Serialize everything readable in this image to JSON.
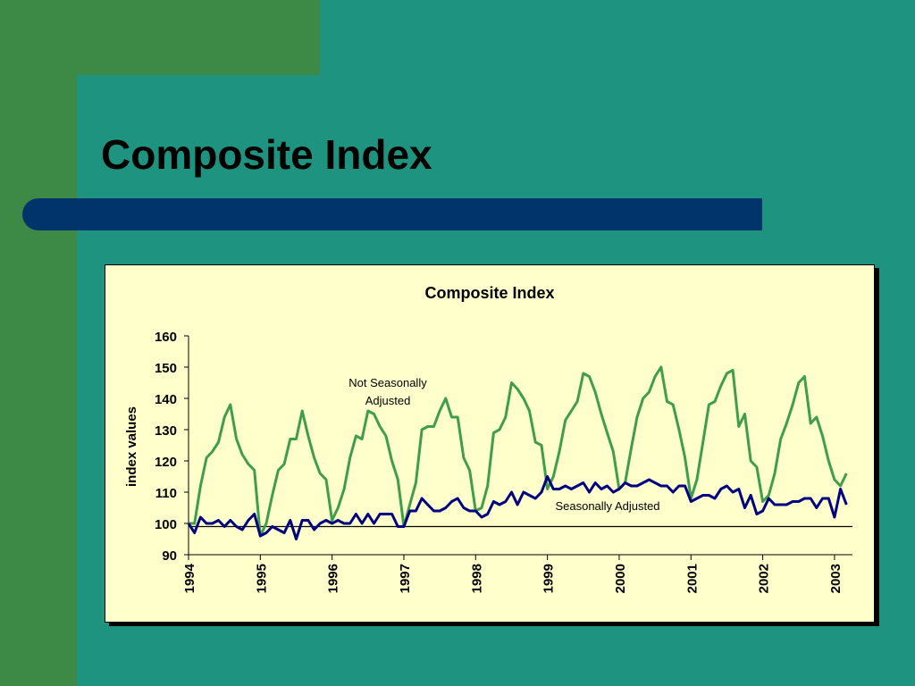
{
  "slide": {
    "title": "Composite Index",
    "colors": {
      "background": "#1e9380",
      "accent_green": "#3c8a45",
      "bar_navy": "#00346b",
      "plot_fill": "#ffffcc"
    }
  },
  "chart_data": {
    "type": "line",
    "title": "Composite Index",
    "xlabel": "",
    "ylabel": "index values",
    "ylim": [
      90,
      160
    ],
    "yticks": [
      90,
      100,
      110,
      120,
      130,
      140,
      150,
      160
    ],
    "xlim": [
      1994,
      2003.25
    ],
    "xticks": [
      "1994",
      "1995",
      "1996",
      "1997",
      "1998",
      "1999",
      "2000",
      "2001",
      "2002",
      "2003"
    ],
    "reference_line": 99,
    "grid": false,
    "annotations": [
      "Not Seasonally Adjusted",
      "Seasonally Adjusted"
    ],
    "series": [
      {
        "color": "#3f9e4b",
        "x": [
          1994.0,
          1994.083,
          1994.167,
          1994.25,
          1994.333,
          1994.417,
          1994.5,
          1994.583,
          1994.667,
          1994.75,
          1994.833,
          1994.917,
          1995.0,
          1995.083,
          1995.167,
          1995.25,
          1995.333,
          1995.417,
          1995.5,
          1995.583,
          1995.667,
          1995.75,
          1995.833,
          1995.917,
          1996.0,
          1996.083,
          1996.167,
          1996.25,
          1996.333,
          1996.417,
          1996.5,
          1996.583,
          1996.667,
          1996.75,
          1996.833,
          1996.917,
          1997.0,
          1997.083,
          1997.167,
          1997.25,
          1997.333,
          1997.417,
          1997.5,
          1997.583,
          1997.667,
          1997.75,
          1997.833,
          1997.917,
          1998.0,
          1998.083,
          1998.167,
          1998.25,
          1998.333,
          1998.417,
          1998.5,
          1998.583,
          1998.667,
          1998.75,
          1998.833,
          1998.917,
          1999.0,
          1999.083,
          1999.167,
          1999.25,
          1999.333,
          1999.417,
          1999.5,
          1999.583,
          1999.667,
          1999.75,
          1999.833,
          1999.917,
          2000.0,
          2000.083,
          2000.167,
          2000.25,
          2000.333,
          2000.417,
          2000.5,
          2000.583,
          2000.667,
          2000.75,
          2000.833,
          2000.917,
          2001.0,
          2001.083,
          2001.167,
          2001.25,
          2001.333,
          2001.417,
          2001.5,
          2001.583,
          2001.667,
          2001.75,
          2001.833,
          2001.917,
          2002.0,
          2002.083,
          2002.167,
          2002.25,
          2002.333,
          2002.417,
          2002.5,
          2002.583,
          2002.667,
          2002.75,
          2002.833,
          2002.917,
          2003.0,
          2003.083,
          2003.167
        ],
        "values": [
          100,
          100,
          112,
          121,
          123,
          126,
          134,
          138,
          127,
          122,
          119,
          117,
          96,
          100,
          109,
          117,
          119,
          127,
          127,
          136,
          128,
          121,
          116,
          114,
          101,
          105,
          111,
          121,
          128,
          127,
          136,
          135,
          131,
          128,
          120,
          114,
          99,
          106,
          113,
          130,
          131,
          131,
          136,
          140,
          134,
          134,
          121,
          117,
          104,
          105,
          112,
          129,
          130,
          134,
          145,
          143,
          140,
          136,
          126,
          125,
          111,
          115,
          123,
          133,
          136,
          139,
          148,
          147,
          142,
          135,
          129,
          123,
          111,
          113,
          124,
          134,
          140,
          142,
          147,
          150,
          139,
          138,
          130,
          121,
          108,
          114,
          126,
          138,
          139,
          144,
          148,
          149,
          131,
          135,
          120,
          118,
          107,
          109,
          116,
          127,
          132,
          138,
          145,
          147,
          132,
          134,
          128,
          120,
          114,
          112,
          116
        ]
      },
      {
        "color": "#000080",
        "x": [
          1994.0,
          1994.083,
          1994.167,
          1994.25,
          1994.333,
          1994.417,
          1994.5,
          1994.583,
          1994.667,
          1994.75,
          1994.833,
          1994.917,
          1995.0,
          1995.083,
          1995.167,
          1995.25,
          1995.333,
          1995.417,
          1995.5,
          1995.583,
          1995.667,
          1995.75,
          1995.833,
          1995.917,
          1996.0,
          1996.083,
          1996.167,
          1996.25,
          1996.333,
          1996.417,
          1996.5,
          1996.583,
          1996.667,
          1996.75,
          1996.833,
          1996.917,
          1997.0,
          1997.083,
          1997.167,
          1997.25,
          1997.333,
          1997.417,
          1997.5,
          1997.583,
          1997.667,
          1997.75,
          1997.833,
          1997.917,
          1998.0,
          1998.083,
          1998.167,
          1998.25,
          1998.333,
          1998.417,
          1998.5,
          1998.583,
          1998.667,
          1998.75,
          1998.833,
          1998.917,
          1999.0,
          1999.083,
          1999.167,
          1999.25,
          1999.333,
          1999.417,
          1999.5,
          1999.583,
          1999.667,
          1999.75,
          1999.833,
          1999.917,
          2000.0,
          2000.083,
          2000.167,
          2000.25,
          2000.333,
          2000.417,
          2000.5,
          2000.583,
          2000.667,
          2000.75,
          2000.833,
          2000.917,
          2001.0,
          2001.083,
          2001.167,
          2001.25,
          2001.333,
          2001.417,
          2001.5,
          2001.583,
          2001.667,
          2001.75,
          2001.833,
          2001.917,
          2002.0,
          2002.083,
          2002.167,
          2002.25,
          2002.333,
          2002.417,
          2002.5,
          2002.583,
          2002.667,
          2002.75,
          2002.833,
          2002.917,
          2003.0,
          2003.083,
          2003.167
        ],
        "values": [
          100,
          97,
          102,
          100,
          100,
          101,
          99,
          101,
          99,
          98,
          101,
          103,
          96,
          97,
          99,
          98,
          97,
          101,
          95,
          101,
          101,
          98,
          100,
          101,
          100,
          101,
          100,
          100,
          103,
          100,
          103,
          100,
          103,
          103,
          103,
          99,
          99,
          104,
          104,
          108,
          106,
          104,
          104,
          105,
          107,
          108,
          105,
          104,
          104,
          102,
          103,
          107,
          106,
          107,
          110,
          106,
          110,
          109,
          108,
          110,
          115,
          111,
          111,
          112,
          111,
          112,
          113,
          110,
          113,
          111,
          112,
          110,
          111,
          113,
          112,
          112,
          113,
          114,
          113,
          112,
          112,
          110,
          112,
          112,
          107,
          108,
          109,
          109,
          108,
          111,
          112,
          110,
          111,
          105,
          109,
          103,
          104,
          108,
          106,
          106,
          106,
          107,
          107,
          108,
          108,
          105,
          108,
          108,
          102,
          111,
          106
        ]
      }
    ]
  }
}
